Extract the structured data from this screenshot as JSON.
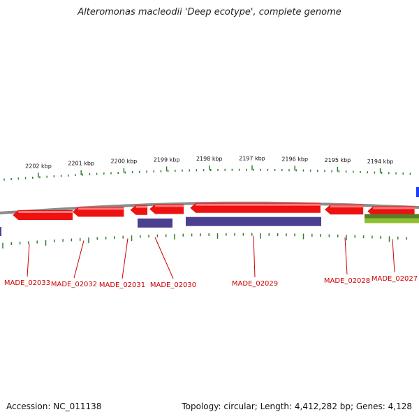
{
  "title": "Alteromonas macleodii 'Deep ecotype', complete genome",
  "footer": {
    "accession": "Accession: NC_011138",
    "topology": "Topology: circular; Length: 4,412,282 bp; Genes: 4,128"
  },
  "kbp_ticks": [
    {
      "label": "2202 kbp",
      "value": 2202
    },
    {
      "label": "2201 kbp",
      "value": 2201
    },
    {
      "label": "2200 kbp",
      "value": 2200
    },
    {
      "label": "2199 kbp",
      "value": 2199
    },
    {
      "label": "2198 kbp",
      "value": 2198
    },
    {
      "label": "2197 kbp",
      "value": 2197
    },
    {
      "label": "2196 kbp",
      "value": 2196
    },
    {
      "label": "2195 kbp",
      "value": 2195
    },
    {
      "label": "2194 kbp",
      "value": 2194
    }
  ],
  "genes": [
    {
      "id": "MADE_02033",
      "start_kbp": 2202.6,
      "end_kbp": 2201.2,
      "strand": "minus"
    },
    {
      "id": "MADE_02032",
      "start_kbp": 2201.2,
      "end_kbp": 2200.0,
      "strand": "minus"
    },
    {
      "id": "MADE_02031",
      "start_kbp": 2199.85,
      "end_kbp": 2199.45,
      "strand": "minus"
    },
    {
      "id": "MADE_02030",
      "start_kbp": 2199.4,
      "end_kbp": 2198.6,
      "strand": "minus"
    },
    {
      "id": "MADE_02029",
      "start_kbp": 2198.45,
      "end_kbp": 2195.4,
      "strand": "minus"
    },
    {
      "id": "MADE_02028",
      "start_kbp": 2195.3,
      "end_kbp": 2194.4,
      "strand": "minus"
    },
    {
      "id": "MADE_02027",
      "start_kbp": 2194.3,
      "end_kbp": 2193.2,
      "strand": "minus"
    }
  ],
  "colors": {
    "gene": "#ee1111",
    "gene_highlight": "#ff7777",
    "cds_purple": "#4b3f8f",
    "cds_green": "#8fbf2f",
    "label": "#cc0000",
    "tick": "#2e7d32",
    "backbone": "#8a8a8a",
    "blue_marker": "#1a3cff"
  }
}
